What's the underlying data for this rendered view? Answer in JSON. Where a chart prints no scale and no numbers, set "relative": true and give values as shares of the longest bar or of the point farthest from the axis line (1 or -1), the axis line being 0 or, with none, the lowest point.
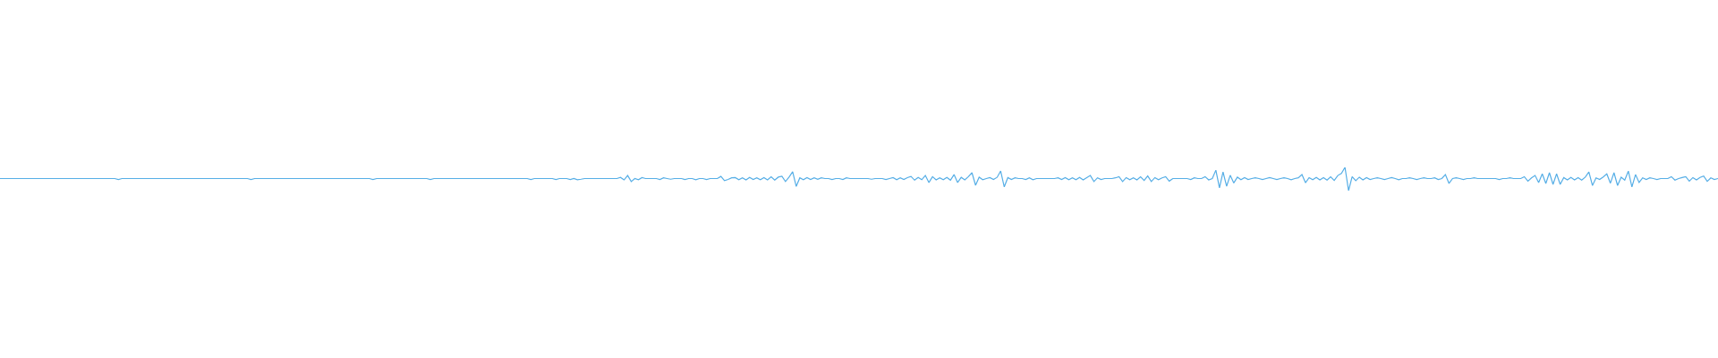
{
  "chart_data": {
    "type": "line",
    "relative": true,
    "color": "#56aee6",
    "categories": [
      null,
      null,
      null,
      null,
      null,
      null,
      null,
      null,
      null,
      null,
      null,
      null,
      null,
      null,
      null,
      null,
      null,
      null,
      null,
      null,
      null,
      null,
      null,
      null,
      null,
      null,
      null,
      null,
      null,
      null,
      null,
      null,
      null,
      null,
      null,
      null,
      null,
      null,
      null,
      null,
      null,
      null,
      null,
      null,
      null,
      null,
      null,
      null,
      null,
      null,
      null,
      null,
      null,
      null,
      null,
      null,
      null,
      null,
      null,
      null,
      null,
      null,
      null,
      null,
      null,
      null,
      null,
      null,
      null,
      null,
      null,
      null,
      null,
      null,
      null,
      null,
      null,
      null,
      null,
      null,
      null,
      null,
      null,
      null,
      null,
      null,
      null,
      null,
      null,
      null,
      null,
      null,
      null,
      null,
      null,
      null,
      null,
      null,
      null,
      null,
      null,
      null,
      null,
      null,
      null,
      null,
      null,
      null,
      null,
      null,
      null,
      null,
      null,
      null,
      null,
      null,
      null,
      null,
      null,
      null,
      null,
      null,
      null,
      null,
      null,
      null,
      null,
      null,
      null,
      null,
      null,
      null,
      null,
      null,
      null,
      null,
      null,
      null,
      null,
      null,
      null,
      null,
      null,
      null,
      null,
      null,
      null,
      null,
      null,
      null,
      null,
      null,
      null,
      null,
      null,
      null,
      null,
      null,
      null,
      null,
      null,
      null,
      null,
      null,
      null,
      null,
      null,
      null,
      null,
      null,
      null,
      null,
      null,
      null,
      null,
      null,
      null,
      null,
      null,
      null,
      null,
      null,
      null,
      null,
      null,
      null,
      null,
      null,
      null,
      null,
      null,
      null,
      null,
      null,
      null,
      null,
      null,
      null,
      null,
      null,
      null,
      null,
      null,
      null,
      null,
      null,
      null,
      null,
      null,
      null,
      null,
      null,
      null,
      null,
      null,
      null,
      null,
      null,
      null,
      null,
      null,
      null,
      null,
      null,
      null,
      null,
      null,
      null,
      null,
      null,
      null,
      null,
      null,
      null,
      null,
      null,
      null,
      null,
      null,
      null,
      null,
      null,
      null,
      null,
      null,
      null,
      null,
      null,
      null,
      null,
      null,
      null,
      null,
      null,
      null,
      null,
      null,
      null,
      null,
      null,
      null,
      null,
      null,
      null,
      null,
      null,
      null,
      null,
      null,
      null,
      null,
      null,
      null,
      null,
      null,
      null,
      null,
      null,
      null,
      null,
      null,
      null,
      null,
      null,
      null,
      null,
      null,
      null,
      null,
      null,
      null,
      null,
      null,
      null,
      null,
      null,
      null,
      null,
      null,
      null,
      null,
      null,
      null,
      null,
      null,
      null,
      null,
      null,
      null,
      null,
      null,
      null,
      null,
      null,
      null,
      null,
      null,
      null,
      null,
      null,
      null,
      null,
      null,
      null,
      null,
      null,
      null,
      null,
      null,
      null,
      null,
      null,
      null,
      null,
      null,
      null,
      null,
      null,
      null,
      null,
      null,
      null,
      null,
      null,
      null,
      null,
      null,
      null,
      null,
      null,
      null,
      null,
      null,
      null,
      null,
      null,
      null,
      null,
      null,
      null,
      null,
      null,
      null,
      null,
      null,
      null,
      null,
      null,
      null,
      null,
      null,
      null,
      null,
      null,
      null,
      null,
      null,
      null,
      null,
      null,
      null,
      null,
      null,
      null,
      null,
      null,
      null,
      null,
      null,
      null,
      null,
      null,
      null,
      null,
      null,
      null,
      null,
      null,
      null,
      null,
      null,
      null,
      null,
      null,
      null,
      null,
      null,
      null,
      null,
      null,
      null,
      null,
      null,
      null,
      null,
      null,
      null,
      null,
      null,
      null,
      null,
      null,
      null,
      null,
      null,
      null,
      null,
      null,
      null,
      null,
      null,
      null,
      null,
      null,
      null,
      null,
      null,
      null,
      null,
      null,
      null,
      null,
      null,
      null,
      null,
      null,
      null,
      null,
      null,
      null,
      null,
      null,
      null,
      null,
      null,
      null,
      null,
      null,
      null,
      null,
      null,
      null,
      null,
      null,
      null,
      null,
      null,
      null,
      null,
      null,
      null,
      null,
      null,
      null,
      null,
      null,
      null,
      null,
      null,
      null
    ],
    "values": [
      0.52,
      0.52,
      0.52,
      0.52,
      0.52,
      0.52,
      0.52,
      0.52,
      0.52,
      0.52,
      0.52,
      0.52,
      0.52,
      0.52,
      0.52,
      0.52,
      0.52,
      0.52,
      0.52,
      0.52,
      0.52,
      0.52,
      0.52,
      0.52,
      0.52,
      0.52,
      0.52,
      0.52,
      0.52,
      0.52,
      0.52,
      0.52,
      0.52,
      0.48,
      0.52,
      0.52,
      0.52,
      0.52,
      0.52,
      0.52,
      0.52,
      0.52,
      0.52,
      0.52,
      0.52,
      0.52,
      0.52,
      0.52,
      0.52,
      0.52,
      0.52,
      0.52,
      0.52,
      0.52,
      0.52,
      0.52,
      0.52,
      0.52,
      0.52,
      0.52,
      0.52,
      0.52,
      0.52,
      0.52,
      0.52,
      0.52,
      0.52,
      0.52,
      0.52,
      0.52,
      0.48,
      0.52,
      0.52,
      0.52,
      0.52,
      0.52,
      0.52,
      0.52,
      0.52,
      0.52,
      0.52,
      0.52,
      0.52,
      0.52,
      0.52,
      0.52,
      0.52,
      0.52,
      0.52,
      0.52,
      0.52,
      0.52,
      0.52,
      0.52,
      0.52,
      0.52,
      0.52,
      0.52,
      0.52,
      0.52,
      0.52,
      0.52,
      0.52,
      0.52,
      0.48,
      0.52,
      0.52,
      0.52,
      0.52,
      0.52,
      0.52,
      0.52,
      0.52,
      0.52,
      0.52,
      0.52,
      0.52,
      0.52,
      0.52,
      0.52,
      0.48,
      0.52,
      0.52,
      0.52,
      0.52,
      0.52,
      0.52,
      0.52,
      0.52,
      0.52,
      0.52,
      0.52,
      0.52,
      0.52,
      0.52,
      0.52,
      0.52,
      0.52,
      0.52,
      0.52,
      0.52,
      0.52,
      0.52,
      0.52,
      0.52,
      0.52,
      0.52,
      0.52,
      0.48,
      0.52,
      0.52,
      0.52,
      0.52,
      0.52,
      0.52,
      0.48,
      0.52,
      0.52,
      0.52,
      0.48,
      0.52,
      0.47,
      0.49,
      0.52,
      0.52,
      0.52,
      0.52,
      0.52,
      0.52,
      0.52,
      0.52,
      0.52,
      0.52,
      0.57,
      0.46,
      0.65,
      0.39,
      0.52,
      0.47,
      0.56,
      0.52,
      0.52,
      0.52,
      0.52,
      0.48,
      0.55,
      0.52,
      0.49,
      0.52,
      0.52,
      0.52,
      0.48,
      0.52,
      0.52,
      0.47,
      0.52,
      0.52,
      0.48,
      0.52,
      0.52,
      0.52,
      0.61,
      0.43,
      0.48,
      0.55,
      0.56,
      0.47,
      0.55,
      0.46,
      0.57,
      0.48,
      0.55,
      0.47,
      0.56,
      0.46,
      0.59,
      0.45,
      0.58,
      0.62,
      0.39,
      0.58,
      0.81,
      0.18,
      0.55,
      0.47,
      0.56,
      0.48,
      0.55,
      0.49,
      0.55,
      0.52,
      0.52,
      0.48,
      0.52,
      0.52,
      0.48,
      0.55,
      0.52,
      0.52,
      0.52,
      0.52,
      0.52,
      0.52,
      0.49,
      0.52,
      0.52,
      0.52,
      0.48,
      0.52,
      0.56,
      0.47,
      0.55,
      0.48,
      0.56,
      0.61,
      0.45,
      0.57,
      0.47,
      0.65,
      0.35,
      0.6,
      0.46,
      0.55,
      0.47,
      0.57,
      0.45,
      0.69,
      0.35,
      0.57,
      0.46,
      0.6,
      0.77,
      0.23,
      0.58,
      0.47,
      0.52,
      0.56,
      0.48,
      0.57,
      0.84,
      0.16,
      0.56,
      0.48,
      0.55,
      0.52,
      0.52,
      0.48,
      0.55,
      0.47,
      0.52,
      0.52,
      0.52,
      0.52,
      0.52,
      0.52,
      0.55,
      0.48,
      0.56,
      0.47,
      0.55,
      0.47,
      0.57,
      0.46,
      0.56,
      0.65,
      0.39,
      0.55,
      0.48,
      0.52,
      0.52,
      0.52,
      0.55,
      0.6,
      0.39,
      0.56,
      0.47,
      0.55,
      0.46,
      0.59,
      0.44,
      0.63,
      0.39,
      0.56,
      0.47,
      0.55,
      0.6,
      0.41,
      0.52,
      0.52,
      0.52,
      0.52,
      0.52,
      0.48,
      0.55,
      0.52,
      0.52,
      0.6,
      0.46,
      0.52,
      0.88,
      0.12,
      0.8,
      0.19,
      0.66,
      0.33,
      0.58,
      0.47,
      0.56,
      0.48,
      0.52,
      0.55,
      0.52,
      0.48,
      0.52,
      0.56,
      0.52,
      0.48,
      0.52,
      0.55,
      0.52,
      0.47,
      0.52,
      0.55,
      0.69,
      0.34,
      0.56,
      0.47,
      0.57,
      0.46,
      0.56,
      0.45,
      0.59,
      0.44,
      0.65,
      0.74,
      1,
      0,
      0.6,
      0.43,
      0.58,
      0.46,
      0.56,
      0.48,
      0.52,
      0.55,
      0.52,
      0.48,
      0.52,
      0.56,
      0.52,
      0.47,
      0.52,
      0.52,
      0.55,
      0.52,
      0.48,
      0.52,
      0.55,
      0.52,
      0.52,
      0.55,
      0.48,
      0.52,
      0.69,
      0.31,
      0.52,
      0.55,
      0.52,
      0.48,
      0.52,
      0.52,
      0.55,
      0.52,
      0.52,
      0.52,
      0.52,
      0.52,
      0.52,
      0.48,
      0.52,
      0.52,
      0.55,
      0.52,
      0.52,
      0.52,
      0.6,
      0.41,
      0.55,
      0.65,
      0.35,
      0.72,
      0.31,
      0.77,
      0.27,
      0.72,
      0.27,
      0.56,
      0.46,
      0.57,
      0.46,
      0.56,
      0.45,
      0.58,
      0.8,
      0.22,
      0.55,
      0.48,
      0.59,
      0.72,
      0.32,
      0.77,
      0.22,
      0.58,
      0.45,
      0.84,
      0.16,
      0.69,
      0.35,
      0.55,
      0.48,
      0.55,
      0.52,
      0.48,
      0.52,
      0.52,
      0.52,
      0.6,
      0.45,
      0.52,
      0.56,
      0.6,
      0.41,
      0.56,
      0.46,
      0.57,
      0.63,
      0.4,
      0.55,
      0.48,
      0.52
    ]
  }
}
